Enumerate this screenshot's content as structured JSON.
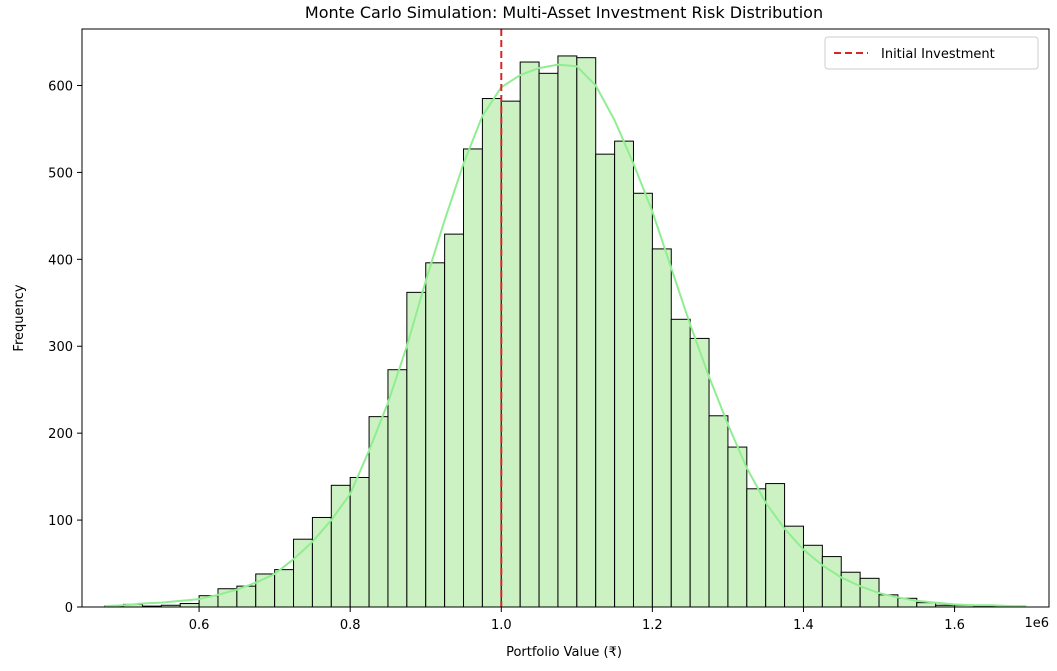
{
  "chart_data": {
    "type": "histogram",
    "title": "Monte Carlo Simulation: Multi-Asset Investment Risk Distribution",
    "xlabel": "Portfolio Value (₹)",
    "ylabel": "Frequency",
    "x_offset_label": "1e6",
    "xlim": [
      0.445,
      1.725
    ],
    "ylim": [
      0,
      665
    ],
    "x_ticks": [
      0.6,
      0.8,
      1.0,
      1.2,
      1.4,
      1.6
    ],
    "x_tick_labels": [
      "0.6",
      "0.8",
      "1.0",
      "1.2",
      "1.4",
      "1.6"
    ],
    "y_ticks": [
      0,
      100,
      200,
      300,
      400,
      500,
      600
    ],
    "y_tick_labels": [
      "0",
      "100",
      "200",
      "300",
      "400",
      "500",
      "600"
    ],
    "bins": {
      "start": 0.475,
      "width": 0.025,
      "counts": [
        1,
        3,
        1,
        2,
        4,
        13,
        21,
        24,
        38,
        43,
        78,
        103,
        140,
        149,
        219,
        273,
        362,
        396,
        429,
        527,
        585,
        582,
        627,
        614,
        634,
        632,
        521,
        536,
        476,
        412,
        331,
        309,
        220,
        184,
        136,
        142,
        93,
        71,
        58,
        40,
        33,
        14,
        10,
        5,
        2,
        2,
        1,
        1
      ]
    },
    "kde": {
      "x": [
        0.475,
        0.5,
        0.525,
        0.55,
        0.575,
        0.6,
        0.625,
        0.65,
        0.675,
        0.7,
        0.725,
        0.75,
        0.775,
        0.8,
        0.825,
        0.85,
        0.875,
        0.9,
        0.925,
        0.95,
        0.975,
        1.0,
        1.025,
        1.05,
        1.075,
        1.1,
        1.125,
        1.15,
        1.175,
        1.2,
        1.225,
        1.25,
        1.275,
        1.3,
        1.325,
        1.35,
        1.375,
        1.4,
        1.425,
        1.45,
        1.475,
        1.5,
        1.525,
        1.55,
        1.575,
        1.6,
        1.625,
        1.65,
        1.675,
        1.695
      ],
      "y": [
        1,
        2,
        4,
        5,
        7,
        9,
        14,
        20,
        28,
        38,
        55,
        75,
        100,
        130,
        180,
        235,
        300,
        375,
        445,
        510,
        565,
        598,
        612,
        620,
        624,
        622,
        600,
        560,
        510,
        455,
        390,
        325,
        265,
        210,
        160,
        120,
        90,
        66,
        48,
        34,
        24,
        16,
        11,
        7,
        5,
        3,
        2,
        2,
        1,
        1
      ]
    },
    "vline": {
      "x": 1.0,
      "label": "Initial Investment",
      "color": "#d62728"
    },
    "legend": {
      "position": "top-right",
      "entries": [
        "Initial Investment"
      ]
    },
    "colors": {
      "bar_fill": "#ccf2c4",
      "bar_edge": "#000000",
      "kde": "#90ee90",
      "vline": "#d62728"
    },
    "grid": false
  }
}
